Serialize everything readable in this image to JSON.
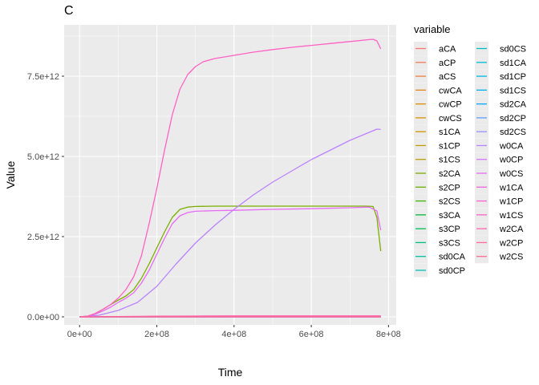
{
  "chart_data": {
    "type": "line",
    "title": "C",
    "xlabel": "Time",
    "ylabel": "Value",
    "xlim": [
      -40000000,
      820000000
    ],
    "ylim": [
      -250000000000,
      9100000000000
    ],
    "x_ticks": [
      0,
      200000000,
      400000000,
      600000000,
      800000000
    ],
    "x_tick_labels": [
      "0e+00",
      "2e+08",
      "4e+08",
      "6e+08",
      "8e+08"
    ],
    "y_ticks": [
      0,
      2500000000000,
      5000000000000,
      7500000000000
    ],
    "y_tick_labels": [
      "0.0e+00",
      "2.5e+12",
      "5.0e+12",
      "7.5e+12"
    ],
    "grid": true,
    "legend": {
      "title": "variable",
      "placement": "right",
      "columns": 2
    },
    "series": [
      {
        "name": "aCA",
        "color": "#F8766D",
        "x": [
          0,
          780000000
        ],
        "y": [
          0,
          0
        ]
      },
      {
        "name": "aCP",
        "color": "#F37B59",
        "x": [
          0,
          780000000
        ],
        "y": [
          0,
          0
        ]
      },
      {
        "name": "aCS",
        "color": "#ED8141",
        "x": [
          0,
          780000000
        ],
        "y": [
          0,
          0
        ]
      },
      {
        "name": "cwCA",
        "color": "#E7861B",
        "x": [
          0,
          780000000
        ],
        "y": [
          0,
          0
        ]
      },
      {
        "name": "cwCP",
        "color": "#DF8C00",
        "x": [
          0,
          780000000
        ],
        "y": [
          0,
          0
        ]
      },
      {
        "name": "cwCS",
        "color": "#D79000",
        "x": [
          0,
          780000000
        ],
        "y": [
          0,
          0
        ]
      },
      {
        "name": "s1CA",
        "color": "#CE9500",
        "x": [
          0,
          780000000
        ],
        "y": [
          0,
          0
        ]
      },
      {
        "name": "s1CP",
        "color": "#C49A00",
        "x": [
          0,
          780000000
        ],
        "y": [
          0,
          0
        ]
      },
      {
        "name": "s1CS",
        "color": "#B99E00",
        "x": [
          0,
          780000000
        ],
        "y": [
          0,
          0
        ]
      },
      {
        "name": "s2CA",
        "color": "#7CAE00",
        "x": [
          0,
          20000000,
          40000000,
          60000000,
          80000000,
          100000000,
          120000000,
          140000000,
          160000000,
          180000000,
          200000000,
          220000000,
          240000000,
          260000000,
          280000000,
          300000000,
          350000000,
          400000000,
          500000000,
          600000000,
          700000000,
          740000000,
          760000000,
          770000000,
          780000000
        ],
        "y": [
          0,
          20000000000,
          100000000000,
          230000000000,
          380000000000,
          520000000000,
          650000000000,
          850000000000,
          1200000000000,
          1650000000000,
          2150000000000,
          2650000000000,
          3100000000000,
          3350000000000,
          3420000000000,
          3440000000000,
          3450000000000,
          3450000000000,
          3450000000000,
          3450000000000,
          3450000000000,
          3450000000000,
          3440000000000,
          3100000000000,
          2050000000000
        ]
      },
      {
        "name": "s2CP",
        "color": "#6AB100",
        "x": [
          0,
          780000000
        ],
        "y": [
          0,
          0
        ]
      },
      {
        "name": "s2CS",
        "color": "#39B600",
        "x": [
          0,
          780000000
        ],
        "y": [
          0,
          0
        ]
      },
      {
        "name": "s3CA",
        "color": "#00BA38",
        "x": [
          0,
          780000000
        ],
        "y": [
          0,
          0
        ]
      },
      {
        "name": "s3CP",
        "color": "#00BC59",
        "x": [
          0,
          780000000
        ],
        "y": [
          0,
          0
        ]
      },
      {
        "name": "s3CS",
        "color": "#00BF7D",
        "x": [
          0,
          780000000
        ],
        "y": [
          0,
          0
        ]
      },
      {
        "name": "sd0CA",
        "color": "#00C0A0",
        "x": [
          0,
          780000000
        ],
        "y": [
          0,
          0
        ]
      },
      {
        "name": "sd0CP",
        "color": "#00C1B7",
        "x": [
          0,
          780000000
        ],
        "y": [
          0,
          0
        ]
      },
      {
        "name": "sd0CS",
        "color": "#00BFC4",
        "x": [
          0,
          780000000
        ],
        "y": [
          0,
          0
        ]
      },
      {
        "name": "sd1CA",
        "color": "#00BCD8",
        "x": [
          0,
          780000000
        ],
        "y": [
          0,
          0
        ]
      },
      {
        "name": "sd1CP",
        "color": "#00B8E7",
        "x": [
          0,
          780000000
        ],
        "y": [
          0,
          0
        ]
      },
      {
        "name": "sd1CS",
        "color": "#00B0F6",
        "x": [
          0,
          780000000
        ],
        "y": [
          0,
          0
        ]
      },
      {
        "name": "sd2CA",
        "color": "#00A5FF",
        "x": [
          0,
          780000000
        ],
        "y": [
          0,
          0
        ]
      },
      {
        "name": "sd2CP",
        "color": "#619CFF",
        "x": [
          0,
          780000000
        ],
        "y": [
          0,
          0
        ]
      },
      {
        "name": "sd2CS",
        "color": "#9590FF",
        "x": [
          0,
          780000000
        ],
        "y": [
          0,
          0
        ]
      },
      {
        "name": "w0CA",
        "color": "#B983FF",
        "x": [
          0,
          50000000,
          100000000,
          150000000,
          200000000,
          250000000,
          300000000,
          350000000,
          400000000,
          450000000,
          500000000,
          550000000,
          600000000,
          650000000,
          700000000,
          750000000,
          770000000,
          780000000
        ],
        "y": [
          0,
          50000000000,
          200000000000,
          450000000000,
          950000000000,
          1650000000000,
          2300000000000,
          2850000000000,
          3350000000000,
          3800000000000,
          4200000000000,
          4550000000000,
          4900000000000,
          5200000000000,
          5500000000000,
          5750000000000,
          5850000000000,
          5840000000000
        ]
      },
      {
        "name": "w0CP",
        "color": "#D575FE",
        "x": [
          0,
          780000000
        ],
        "y": [
          0,
          0
        ]
      },
      {
        "name": "w0CS",
        "color": "#E76BF3",
        "x": [
          0,
          20000000,
          40000000,
          60000000,
          80000000,
          100000000,
          120000000,
          140000000,
          160000000,
          180000000,
          200000000,
          220000000,
          240000000,
          260000000,
          280000000,
          300000000,
          350000000,
          400000000,
          500000000,
          600000000,
          700000000,
          750000000,
          770000000,
          780000000
        ],
        "y": [
          0,
          15000000000,
          80000000000,
          180000000000,
          300000000000,
          450000000000,
          580000000000,
          750000000000,
          1050000000000,
          1450000000000,
          1950000000000,
          2450000000000,
          2900000000000,
          3150000000000,
          3250000000000,
          3290000000000,
          3310000000000,
          3320000000000,
          3350000000000,
          3370000000000,
          3400000000000,
          3420000000000,
          3300000000000,
          2700000000000
        ]
      },
      {
        "name": "w1CA",
        "color": "#F263E2",
        "x": [
          0,
          780000000
        ],
        "y": [
          0,
          0
        ]
      },
      {
        "name": "w1CP",
        "color": "#FA62D4",
        "x": [
          0,
          780000000
        ],
        "y": [
          0,
          0
        ]
      },
      {
        "name": "w1CS",
        "color": "#FF61C3",
        "x": [
          0,
          20000000,
          40000000,
          60000000,
          80000000,
          100000000,
          120000000,
          140000000,
          160000000,
          180000000,
          200000000,
          220000000,
          240000000,
          260000000,
          280000000,
          300000000,
          320000000,
          350000000,
          400000000,
          450000000,
          500000000,
          550000000,
          600000000,
          650000000,
          700000000,
          750000000,
          760000000,
          770000000,
          780000000
        ],
        "y": [
          0,
          20000000000,
          100000000000,
          230000000000,
          380000000000,
          580000000000,
          850000000000,
          1250000000000,
          1900000000000,
          2900000000000,
          4000000000000,
          5200000000000,
          6300000000000,
          7100000000000,
          7550000000000,
          7800000000000,
          7950000000000,
          8050000000000,
          8150000000000,
          8250000000000,
          8330000000000,
          8400000000000,
          8460000000000,
          8520000000000,
          8580000000000,
          8640000000000,
          8650000000000,
          8600000000000,
          8350000000000
        ]
      },
      {
        "name": "w2CA",
        "color": "#FF64B0",
        "x": [
          0,
          100000000,
          200000000,
          300000000,
          400000000,
          500000000,
          600000000,
          700000000,
          780000000
        ],
        "y": [
          0,
          10000000000,
          20000000000,
          25000000000,
          30000000000,
          30000000000,
          30000000000,
          30000000000,
          30000000000
        ]
      },
      {
        "name": "w2CP",
        "color": "#FF699C",
        "x": [
          0,
          780000000
        ],
        "y": [
          0,
          0
        ]
      },
      {
        "name": "w2CS",
        "color": "#FF6C91",
        "x": [
          0,
          780000000
        ],
        "y": [
          0,
          0
        ]
      }
    ]
  }
}
